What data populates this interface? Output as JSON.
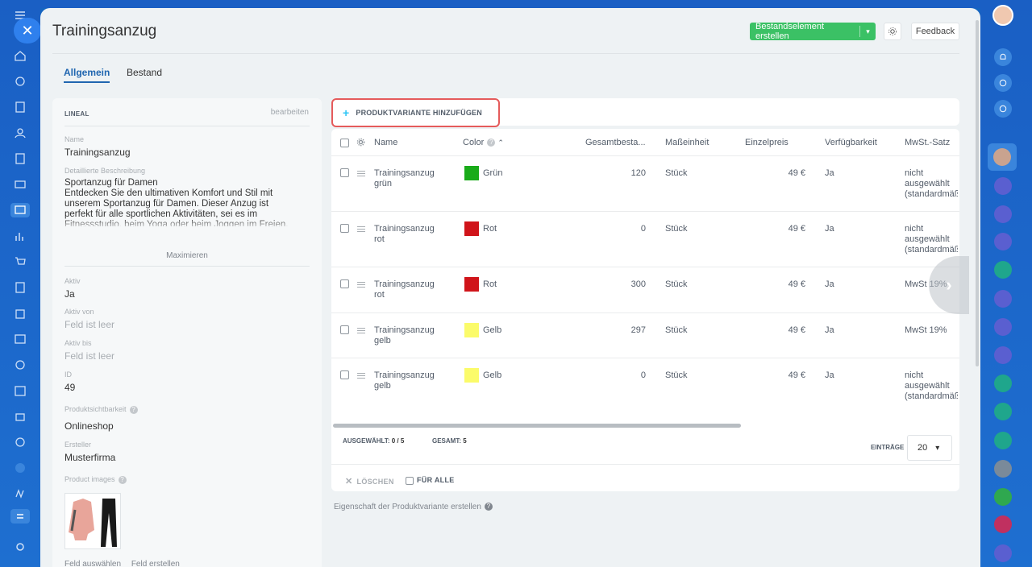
{
  "page": {
    "title": "Trainingsanzug"
  },
  "header": {
    "create_label": "Bestandselement erstellen",
    "feedback_label": "Feedback"
  },
  "tabs": [
    {
      "label": "Allgemein",
      "active": true
    },
    {
      "label": "Bestand",
      "active": false
    }
  ],
  "left": {
    "heading": "LINEAL",
    "edit": "bearbeiten",
    "name_label": "Name",
    "name_value": "Trainingsanzug",
    "desc_label": "Detaillierte Beschreibung",
    "desc_value": "Sportanzug für Damen\nEntdecken Sie den ultimativen Komfort und Stil mit unserem Sportanzug für Damen. Dieser Anzug ist perfekt für alle sportlichen Aktivitäten, sei es im Fitnessstudio, beim Yoga oder beim Joggen im Freien.",
    "maximize": "Maximieren",
    "active_label": "Aktiv",
    "active_value": "Ja",
    "from_label": "Aktiv von",
    "from_value": "Feld ist leer",
    "to_label": "Aktiv bis",
    "to_value": "Feld ist leer",
    "id_label": "ID",
    "id_value": "49",
    "visibility_label": "Produktsichtbarkeit",
    "visibility_value": "Onlineshop",
    "creator_label": "Ersteller",
    "creator_value": "Musterfirma",
    "images_label": "Product images",
    "select_field": "Feld auswählen",
    "create_field": "Feld erstellen"
  },
  "grid": {
    "add_label": "PRODUKTVARIANTE HINZUFÜGEN",
    "columns": [
      "Name",
      "Color",
      "Gesamtbesta...",
      "Maßeinheit",
      "Einzelpreis",
      "Verfügbarkeit",
      "MwSt.-Satz"
    ],
    "rows": [
      {
        "name": "Trainingsanzug grün",
        "color": "Grün",
        "swatch": "#1aab1a",
        "qty": "120",
        "unit": "Stück",
        "price": "49 €",
        "avail": "Ja",
        "vat": "nicht ausgewählt (standardmäß"
      },
      {
        "name": "Trainingsanzug rot",
        "color": "Rot",
        "swatch": "#d0141a",
        "qty": "0",
        "unit": "Stück",
        "price": "49 €",
        "avail": "Ja",
        "vat": "nicht ausgewählt (standardmäß"
      },
      {
        "name": "Trainingsanzug rot",
        "color": "Rot",
        "swatch": "#d0141a",
        "qty": "300",
        "unit": "Stück",
        "price": "49 €",
        "avail": "Ja",
        "vat": "MwSt 19%"
      },
      {
        "name": "Trainingsanzug gelb",
        "color": "Gelb",
        "swatch": "#fbfb6a",
        "qty": "297",
        "unit": "Stück",
        "price": "49 €",
        "avail": "Ja",
        "vat": "MwSt 19%"
      },
      {
        "name": "Trainingsanzug gelb",
        "color": "Gelb",
        "swatch": "#fbfb6a",
        "qty": "0",
        "unit": "Stück",
        "price": "49 €",
        "avail": "Ja",
        "vat": "nicht ausgewählt (standardmäß"
      }
    ],
    "selected_label": "AUSGEWÄHLT:",
    "selected_value": "0 / 5",
    "total_label": "GESAMT:",
    "total_value": "5",
    "entries_label": "EINTRÄGE",
    "entries_value": "20",
    "delete_label": "LÖSCHEN",
    "for_all_label": "FÜR ALLE"
  },
  "footer_link": "Eigenschaft der Produktvariante erstellen",
  "colors": {
    "accent": "#2066b0",
    "create_btn": "#3bc165",
    "sidebar": "#1e6fd0"
  }
}
